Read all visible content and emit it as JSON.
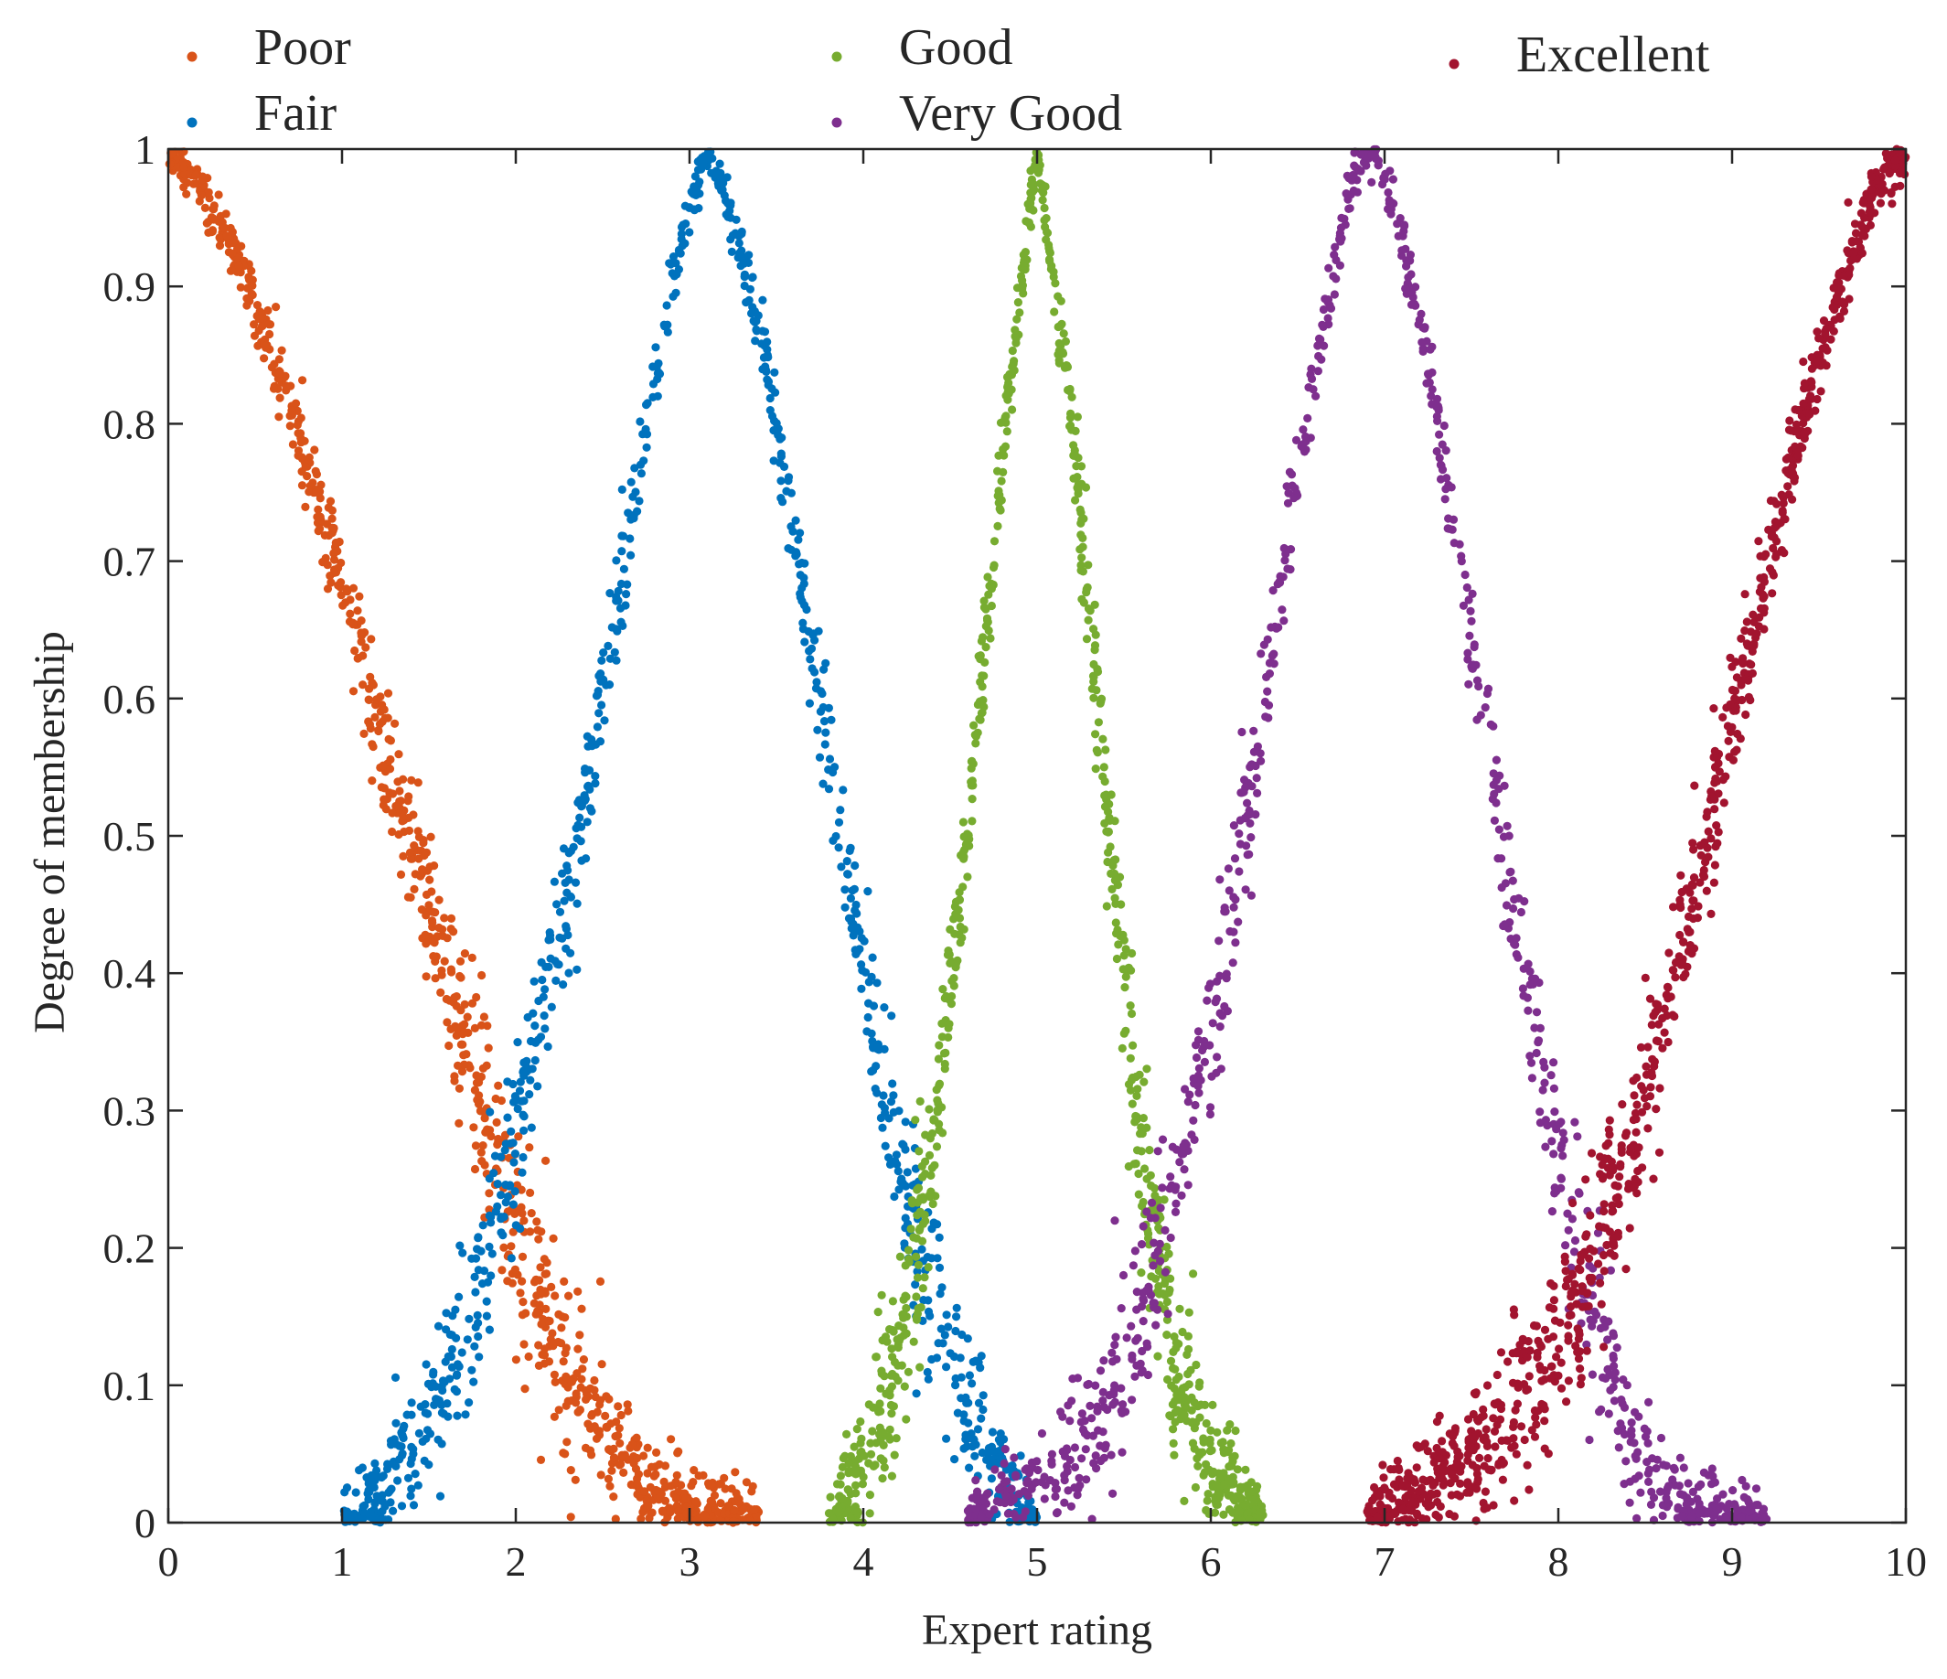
{
  "chart_data": {
    "type": "scatter",
    "title": "",
    "xlabel": "Expert rating",
    "ylabel": "Degree of membership",
    "xlim": [
      0,
      10
    ],
    "ylim": [
      0,
      1
    ],
    "xticks": [
      "0",
      "1",
      "2",
      "3",
      "4",
      "5",
      "6",
      "7",
      "8",
      "9",
      "10"
    ],
    "yticks": [
      "0",
      "0.1",
      "0.2",
      "0.3",
      "0.4",
      "0.5",
      "0.6",
      "0.7",
      "0.8",
      "0.9",
      "1"
    ],
    "grid": false,
    "legend_position": "top",
    "series": [
      {
        "name": "Poor",
        "color": "#D95319",
        "peak_x": 0.0,
        "points": [
          [
            0.0,
            1.0
          ],
          [
            0.2,
            0.97
          ],
          [
            0.4,
            0.92
          ],
          [
            0.6,
            0.85
          ],
          [
            0.8,
            0.77
          ],
          [
            1.0,
            0.68
          ],
          [
            1.2,
            0.58
          ],
          [
            1.4,
            0.49
          ],
          [
            1.6,
            0.4
          ],
          [
            1.8,
            0.31
          ],
          [
            2.0,
            0.22
          ],
          [
            2.2,
            0.15
          ],
          [
            2.4,
            0.09
          ],
          [
            2.6,
            0.05
          ],
          [
            2.8,
            0.02
          ],
          [
            3.0,
            0.01
          ],
          [
            3.4,
            0.0
          ]
        ]
      },
      {
        "name": "Fair",
        "color": "#0072BD",
        "peak_x": 3.1,
        "points": [
          [
            1.0,
            0.0
          ],
          [
            1.2,
            0.02
          ],
          [
            1.4,
            0.05
          ],
          [
            1.6,
            0.1
          ],
          [
            1.8,
            0.18
          ],
          [
            2.0,
            0.28
          ],
          [
            2.2,
            0.4
          ],
          [
            2.4,
            0.53
          ],
          [
            2.6,
            0.68
          ],
          [
            2.8,
            0.83
          ],
          [
            3.0,
            0.96
          ],
          [
            3.1,
            1.0
          ],
          [
            3.2,
            0.97
          ],
          [
            3.4,
            0.87
          ],
          [
            3.6,
            0.72
          ],
          [
            3.8,
            0.55
          ],
          [
            4.0,
            0.4
          ],
          [
            4.2,
            0.26
          ],
          [
            4.4,
            0.15
          ],
          [
            4.6,
            0.08
          ],
          [
            4.8,
            0.03
          ],
          [
            5.0,
            0.0
          ]
        ]
      },
      {
        "name": "Good",
        "color": "#77AC30",
        "peak_x": 5.0,
        "points": [
          [
            3.8,
            0.0
          ],
          [
            4.0,
            0.04
          ],
          [
            4.2,
            0.12
          ],
          [
            4.4,
            0.27
          ],
          [
            4.6,
            0.5
          ],
          [
            4.8,
            0.78
          ],
          [
            5.0,
            1.0
          ],
          [
            5.2,
            0.8
          ],
          [
            5.4,
            0.52
          ],
          [
            5.6,
            0.27
          ],
          [
            5.8,
            0.11
          ],
          [
            6.0,
            0.04
          ],
          [
            6.3,
            0.0
          ]
        ]
      },
      {
        "name": "Very Good",
        "color": "#7E2F8E",
        "peak_x": 6.9,
        "points": [
          [
            4.6,
            0.0
          ],
          [
            4.8,
            0.02
          ],
          [
            5.0,
            0.03
          ],
          [
            5.2,
            0.05
          ],
          [
            5.4,
            0.09
          ],
          [
            5.6,
            0.15
          ],
          [
            5.8,
            0.24
          ],
          [
            6.0,
            0.36
          ],
          [
            6.2,
            0.51
          ],
          [
            6.4,
            0.68
          ],
          [
            6.6,
            0.84
          ],
          [
            6.8,
            0.97
          ],
          [
            6.9,
            1.0
          ],
          [
            7.0,
            0.98
          ],
          [
            7.2,
            0.88
          ],
          [
            7.4,
            0.73
          ],
          [
            7.6,
            0.56
          ],
          [
            7.8,
            0.4
          ],
          [
            8.0,
            0.26
          ],
          [
            8.2,
            0.15
          ],
          [
            8.4,
            0.07
          ],
          [
            8.6,
            0.03
          ],
          [
            8.8,
            0.01
          ],
          [
            9.2,
            0.0
          ]
        ]
      },
      {
        "name": "Excellent",
        "color": "#A2142F",
        "peak_x": 10.0,
        "points": [
          [
            6.9,
            0.0
          ],
          [
            7.2,
            0.02
          ],
          [
            7.6,
            0.06
          ],
          [
            8.0,
            0.13
          ],
          [
            8.2,
            0.19
          ],
          [
            8.4,
            0.27
          ],
          [
            8.6,
            0.36
          ],
          [
            8.8,
            0.47
          ],
          [
            9.0,
            0.58
          ],
          [
            9.2,
            0.69
          ],
          [
            9.4,
            0.8
          ],
          [
            9.6,
            0.89
          ],
          [
            9.8,
            0.96
          ],
          [
            10.0,
            1.0
          ]
        ]
      }
    ]
  }
}
